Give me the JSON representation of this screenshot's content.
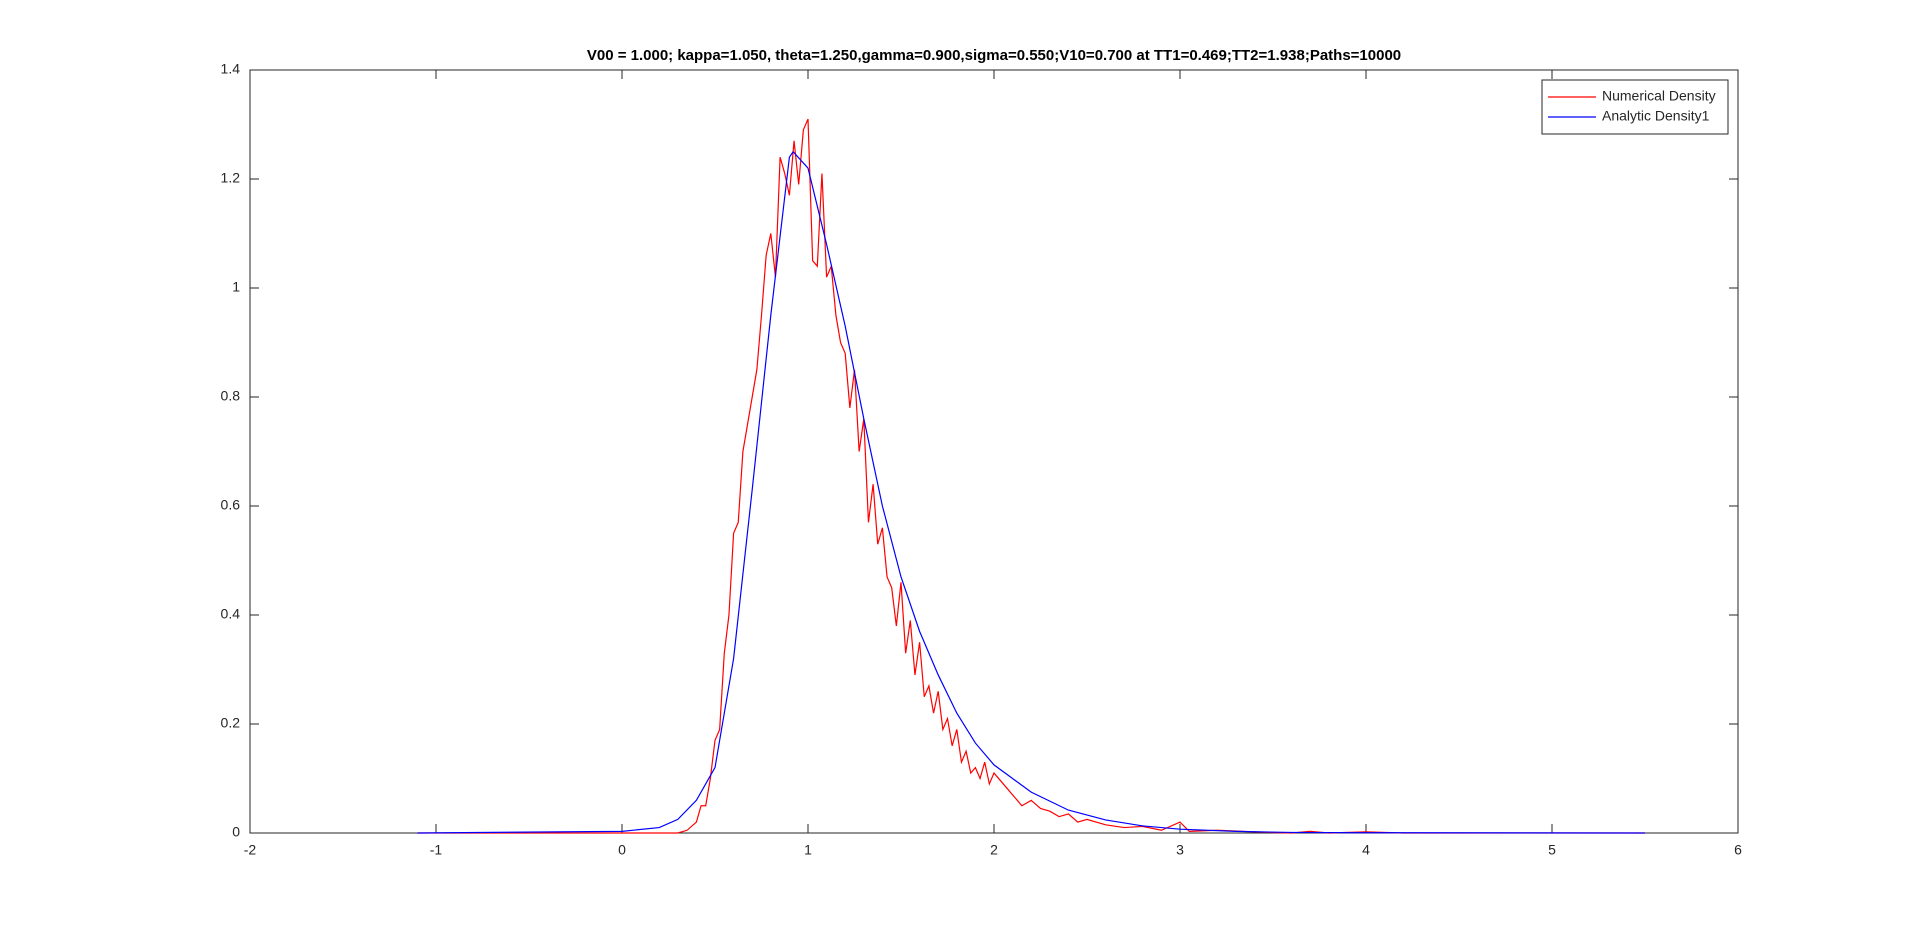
{
  "chart_data": {
    "type": "line",
    "title": "V00 = 1.000; kappa=1.050, theta=1.250,gamma=0.900,sigma=0.550;V10=0.700 at TT1=0.469;TT2=1.938;Paths=10000",
    "xlim": [
      -2,
      6
    ],
    "xticks": [
      -2,
      -1,
      0,
      1,
      2,
      3,
      4,
      5,
      6
    ],
    "ylim": [
      0,
      1.4
    ],
    "yticks": [
      0,
      0.2,
      0.4,
      0.6,
      0.8,
      1,
      1.2,
      1.4
    ],
    "legend": "top-right",
    "series": [
      {
        "name": "Numerical Density",
        "color": "#ff0000",
        "x": [
          -1.1,
          0,
          0.3,
          0.35,
          0.4,
          0.425,
          0.45,
          0.475,
          0.5,
          0.525,
          0.55,
          0.575,
          0.6,
          0.625,
          0.65,
          0.675,
          0.7,
          0.725,
          0.75,
          0.775,
          0.8,
          0.825,
          0.85,
          0.875,
          0.9,
          0.925,
          0.95,
          0.975,
          1.0,
          1.025,
          1.05,
          1.075,
          1.1,
          1.125,
          1.15,
          1.175,
          1.2,
          1.225,
          1.25,
          1.275,
          1.3,
          1.325,
          1.35,
          1.375,
          1.4,
          1.425,
          1.45,
          1.475,
          1.5,
          1.525,
          1.55,
          1.575,
          1.6,
          1.625,
          1.65,
          1.675,
          1.7,
          1.725,
          1.75,
          1.775,
          1.8,
          1.825,
          1.85,
          1.875,
          1.9,
          1.925,
          1.95,
          1.975,
          2.0,
          2.05,
          2.1,
          2.15,
          2.2,
          2.25,
          2.3,
          2.35,
          2.4,
          2.45,
          2.5,
          2.6,
          2.7,
          2.8,
          2.9,
          3.0,
          3.05,
          3.2,
          3.4,
          3.6,
          3.7,
          3.8,
          4.0,
          4.2,
          5.5
        ],
        "values": [
          0,
          0,
          0,
          0.005,
          0.02,
          0.05,
          0.05,
          0.1,
          0.17,
          0.19,
          0.33,
          0.4,
          0.55,
          0.57,
          0.7,
          0.75,
          0.8,
          0.85,
          0.95,
          1.06,
          1.1,
          1.02,
          1.24,
          1.21,
          1.17,
          1.27,
          1.19,
          1.29,
          1.31,
          1.05,
          1.04,
          1.21,
          1.02,
          1.04,
          0.95,
          0.9,
          0.88,
          0.78,
          0.85,
          0.7,
          0.76,
          0.57,
          0.64,
          0.53,
          0.56,
          0.47,
          0.45,
          0.38,
          0.46,
          0.33,
          0.39,
          0.29,
          0.35,
          0.25,
          0.27,
          0.22,
          0.26,
          0.19,
          0.21,
          0.16,
          0.19,
          0.13,
          0.15,
          0.11,
          0.12,
          0.1,
          0.13,
          0.09,
          0.11,
          0.09,
          0.07,
          0.05,
          0.06,
          0.045,
          0.04,
          0.03,
          0.035,
          0.02,
          0.025,
          0.015,
          0.01,
          0.012,
          0.005,
          0.02,
          0.003,
          0.005,
          0.002,
          0,
          0.003,
          0,
          0.002,
          0,
          0
        ]
      },
      {
        "name": "Analytic Density1",
        "color": "#0000ff",
        "x": [
          -1.1,
          0,
          0.2,
          0.3,
          0.4,
          0.5,
          0.6,
          0.7,
          0.8,
          0.9,
          0.92,
          1.0,
          1.1,
          1.2,
          1.3,
          1.4,
          1.5,
          1.6,
          1.7,
          1.8,
          1.9,
          2.0,
          2.2,
          2.4,
          2.6,
          2.8,
          3.0,
          3.3,
          3.6,
          4.0,
          5.5
        ],
        "values": [
          0,
          0.003,
          0.01,
          0.025,
          0.06,
          0.12,
          0.32,
          0.63,
          0.95,
          1.24,
          1.25,
          1.22,
          1.08,
          0.93,
          0.76,
          0.6,
          0.47,
          0.37,
          0.29,
          0.22,
          0.165,
          0.125,
          0.075,
          0.042,
          0.024,
          0.013,
          0.007,
          0.003,
          0.001,
          0.0005,
          0
        ]
      }
    ]
  }
}
